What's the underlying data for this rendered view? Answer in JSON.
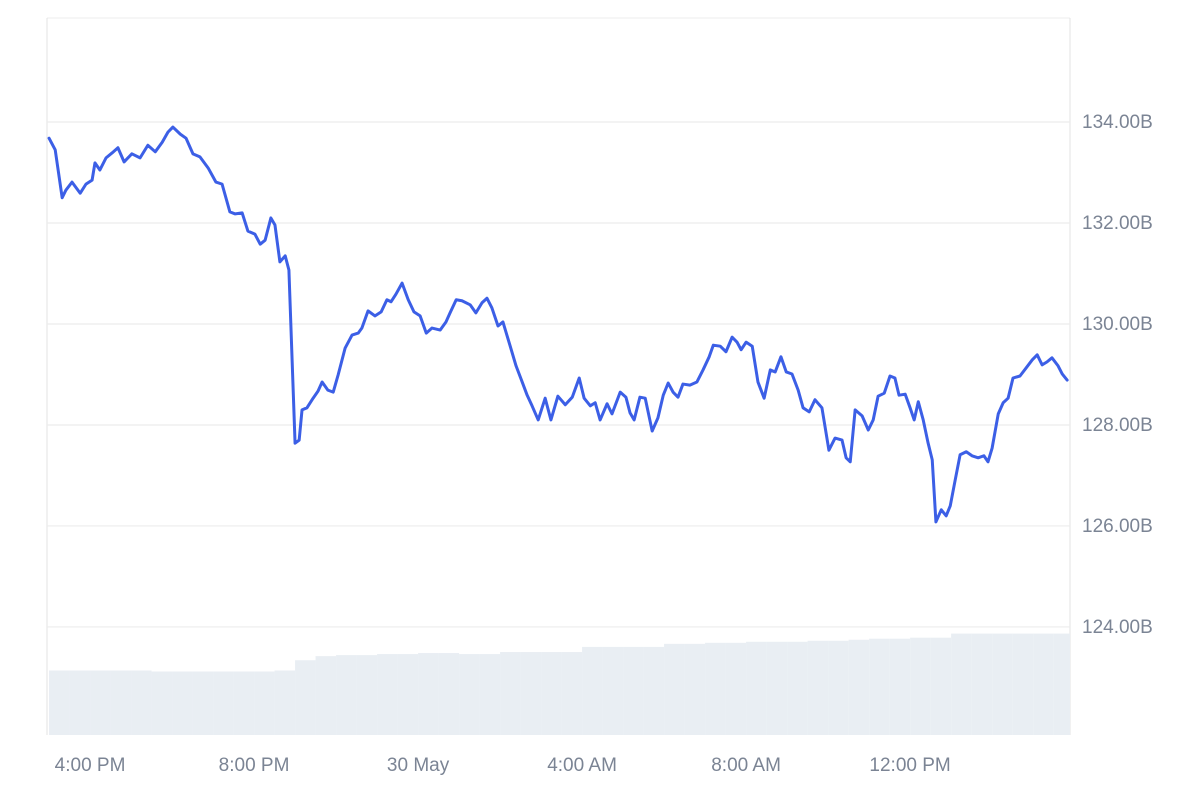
{
  "chart_data": {
    "type": "line",
    "x": [
      15.0,
      15.15,
      15.32,
      15.41,
      15.56,
      15.76,
      15.9,
      16.05,
      16.12,
      16.24,
      16.39,
      16.54,
      16.68,
      16.83,
      17.02,
      17.22,
      17.41,
      17.59,
      17.76,
      17.9,
      18.02,
      18.2,
      18.34,
      18.51,
      18.68,
      18.88,
      19.07,
      19.22,
      19.41,
      19.54,
      19.71,
      19.85,
      20.02,
      20.15,
      20.27,
      20.41,
      20.51,
      20.63,
      20.76,
      20.85,
      21.0,
      21.1,
      21.17,
      21.29,
      21.44,
      21.56,
      21.66,
      21.8,
      21.93,
      22.05,
      22.22,
      22.39,
      22.54,
      22.63,
      22.78,
      22.95,
      23.1,
      23.24,
      23.34,
      23.46,
      23.61,
      23.76,
      23.9,
      24.05,
      24.2,
      24.34,
      24.54,
      24.68,
      24.78,
      24.93,
      25.07,
      25.27,
      25.41,
      25.56,
      25.68,
      25.8,
      25.95,
      26.07,
      26.24,
      26.39,
      26.54,
      26.66,
      26.78,
      26.93,
      27.1,
      27.24,
      27.41,
      27.59,
      27.76,
      27.93,
      28.05,
      28.2,
      28.32,
      28.44,
      28.61,
      28.73,
      28.93,
      29.07,
      29.17,
      29.27,
      29.41,
      29.54,
      29.71,
      29.85,
      29.98,
      30.1,
      30.22,
      30.34,
      30.46,
      30.63,
      30.8,
      30.95,
      31.1,
      31.2,
      31.37,
      31.51,
      31.66,
      31.78,
      31.88,
      32.0,
      32.15,
      32.29,
      32.44,
      32.59,
      32.71,
      32.85,
      32.98,
      33.12,
      33.27,
      33.39,
      33.54,
      33.68,
      33.85,
      34.02,
      34.17,
      34.34,
      34.44,
      34.54,
      34.66,
      34.83,
      34.98,
      35.1,
      35.22,
      35.37,
      35.51,
      35.63,
      35.73,
      35.88,
      36.0,
      36.1,
      36.2,
      36.32,
      36.44,
      36.54,
      36.63,
      36.76,
      36.88,
      36.98,
      37.1,
      37.22,
      37.37,
      37.51,
      37.66,
      37.8,
      37.9,
      38.0,
      38.15,
      38.27,
      38.39,
      38.51,
      38.68,
      38.83,
      38.98,
      39.1,
      39.22,
      39.34,
      39.46,
      39.61,
      39.71,
      39.83
    ],
    "series": [
      {
        "color": "#3c5fe6",
        "values": [
          133.68,
          133.45,
          132.5,
          132.65,
          132.81,
          132.59,
          132.77,
          132.85,
          133.19,
          133.05,
          133.29,
          133.39,
          133.49,
          133.21,
          133.37,
          133.29,
          133.54,
          133.41,
          133.6,
          133.8,
          133.9,
          133.76,
          133.68,
          133.37,
          133.31,
          133.09,
          132.81,
          132.77,
          132.22,
          132.18,
          132.2,
          131.84,
          131.78,
          131.58,
          131.66,
          132.1,
          131.96,
          131.23,
          131.35,
          131.07,
          127.64,
          127.7,
          128.3,
          128.34,
          128.53,
          128.67,
          128.85,
          128.69,
          128.65,
          128.99,
          129.52,
          129.78,
          129.82,
          129.92,
          130.26,
          130.16,
          130.24,
          130.48,
          130.44,
          130.59,
          130.81,
          130.48,
          130.24,
          130.16,
          129.82,
          129.92,
          129.88,
          130.04,
          130.22,
          130.48,
          130.46,
          130.38,
          130.22,
          130.42,
          130.51,
          130.32,
          129.96,
          130.04,
          129.58,
          129.17,
          128.85,
          128.59,
          128.38,
          128.1,
          128.53,
          128.1,
          128.57,
          128.4,
          128.55,
          128.93,
          128.53,
          128.38,
          128.44,
          128.1,
          128.42,
          128.22,
          128.65,
          128.55,
          128.24,
          128.1,
          128.55,
          128.53,
          127.88,
          128.14,
          128.59,
          128.83,
          128.65,
          128.55,
          128.81,
          128.79,
          128.85,
          129.09,
          129.35,
          129.58,
          129.56,
          129.45,
          129.74,
          129.64,
          129.49,
          129.64,
          129.56,
          128.85,
          128.53,
          129.09,
          129.05,
          129.35,
          129.05,
          129.01,
          128.69,
          128.34,
          128.26,
          128.5,
          128.34,
          127.5,
          127.74,
          127.7,
          127.35,
          127.27,
          128.3,
          128.18,
          127.9,
          128.1,
          128.57,
          128.63,
          128.97,
          128.93,
          128.59,
          128.61,
          128.34,
          128.1,
          128.46,
          128.1,
          127.64,
          127.31,
          126.08,
          126.32,
          126.2,
          126.4,
          126.91,
          127.41,
          127.47,
          127.39,
          127.35,
          127.39,
          127.27,
          127.54,
          128.22,
          128.44,
          128.53,
          128.93,
          128.97,
          129.13,
          129.29,
          129.39,
          129.19,
          129.25,
          129.33,
          129.17,
          129.01,
          128.89
        ]
      }
    ],
    "volume": {
      "color": "#e9eef3",
      "x": [
        15,
        15.5,
        16,
        16.5,
        17,
        17.5,
        18,
        18.5,
        19,
        19.5,
        20,
        20.5,
        21,
        21.5,
        22,
        22.5,
        23,
        23.5,
        24,
        24.5,
        25,
        25.5,
        26,
        26.5,
        27,
        27.5,
        28,
        28.5,
        29,
        29.5,
        30,
        30.5,
        31,
        31.5,
        32,
        32.5,
        33,
        33.5,
        34,
        34.5,
        35,
        35.5,
        36,
        36.5,
        37,
        37.5,
        38,
        38.5,
        39,
        39.5
      ],
      "values": [
        63,
        63,
        63,
        63,
        63,
        62,
        62,
        62,
        62,
        62,
        62,
        63,
        73,
        77,
        78,
        78,
        79,
        79,
        80,
        80,
        79,
        79,
        81,
        81,
        81,
        81,
        86,
        86,
        86,
        86,
        89,
        89,
        90,
        90,
        91,
        91,
        91,
        92,
        92,
        93,
        94,
        94,
        95,
        95,
        99,
        99,
        99,
        99,
        99,
        99
      ],
      "ylim": [
        0,
        700
      ]
    },
    "xlim": [
      14.95,
      39.9
    ],
    "xticks": [
      {
        "value": 16,
        "label": "4:00 PM"
      },
      {
        "value": 20,
        "label": "8:00 PM"
      },
      {
        "value": 24,
        "label": "30 May"
      },
      {
        "value": 28,
        "label": "4:00 AM"
      },
      {
        "value": 32,
        "label": "8:00 AM"
      },
      {
        "value": 36,
        "label": "12:00 PM"
      }
    ],
    "ylim": [
      121.86,
      136.06
    ],
    "yticks": [
      {
        "value": 124,
        "label": "124.00B"
      },
      {
        "value": 126,
        "label": "126.00B"
      },
      {
        "value": 128,
        "label": "128.00B"
      },
      {
        "value": 130,
        "label": "130.00B"
      },
      {
        "value": 132,
        "label": "132.00B"
      },
      {
        "value": 134,
        "label": "134.00B"
      }
    ],
    "grid": true
  }
}
